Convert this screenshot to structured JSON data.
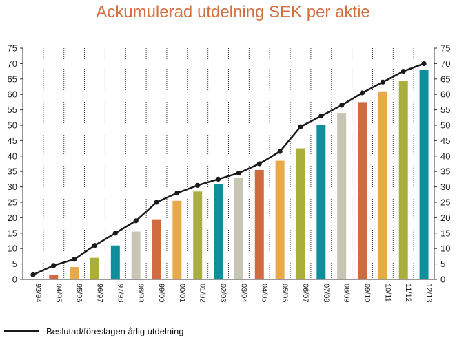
{
  "chart_data": {
    "type": "bar",
    "title": "Ackumulerad utdelning SEK per aktie",
    "categories": [
      "93/94",
      "94/95",
      "95/96",
      "96/97",
      "97/98",
      "98/99",
      "99/00",
      "00/01",
      "01/02",
      "02/03",
      "03/04",
      "04/05",
      "05/06",
      "06/07",
      "07/08",
      "08/09",
      "09/10",
      "10/11",
      "11/12",
      "12/13"
    ],
    "ylim": [
      0,
      75
    ],
    "yticks": [
      0,
      5,
      10,
      15,
      20,
      25,
      30,
      35,
      40,
      45,
      50,
      55,
      60,
      65,
      70,
      75
    ],
    "bar_series": {
      "name": "",
      "values": [
        0,
        1.5,
        4,
        7,
        11,
        15.5,
        19.5,
        25.5,
        28.5,
        31,
        33,
        35.5,
        38.5,
        42.5,
        50,
        54,
        57.5,
        61,
        64.5,
        68
      ]
    },
    "line_series": {
      "name": "Beslutad/föreslagen årlig utdelning",
      "values": [
        1.5,
        4.5,
        6.5,
        11,
        15,
        19,
        25,
        28,
        30.5,
        32.5,
        34.5,
        37.5,
        41.5,
        49.5,
        53,
        56.5,
        60.5,
        64,
        67.5,
        70
      ]
    },
    "bar_colors": [
      "#cf6b3f",
      "#e8a94a",
      "#a9ae3c",
      "#0f8f9d",
      "#c7c5b4"
    ],
    "line_color": "#1a1a1a",
    "title_color": "#d4703f",
    "grid": true,
    "legend_position": "bottom-left"
  }
}
